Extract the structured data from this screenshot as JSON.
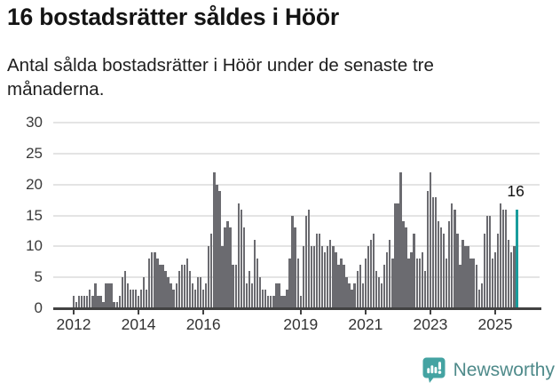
{
  "header": {
    "title": "16 bostadsrätter såldes i Höör",
    "subtitle": "Antal sålda bostadsrätter i Höör under de senaste tre månaderna."
  },
  "chart_data": {
    "type": "bar",
    "title": "16 bostadsrätter såldes i Höör",
    "subtitle": "Antal sålda bostadsrätter i Höör under de senaste tre månaderna.",
    "frequency": "monthly",
    "start_month": "2012-01",
    "end_month": "2025-09",
    "values": [
      2,
      1,
      2,
      2,
      2,
      2,
      3,
      2,
      4,
      2,
      2,
      1,
      4,
      4,
      4,
      1,
      1,
      2,
      5,
      6,
      4,
      3,
      3,
      3,
      2,
      3,
      5,
      3,
      8,
      9,
      9,
      8,
      7,
      7,
      6,
      5,
      4,
      3,
      4,
      6,
      7,
      7,
      8,
      6,
      4,
      3,
      5,
      5,
      3,
      4,
      10,
      12,
      22,
      20,
      19,
      10,
      13,
      14,
      13,
      7,
      7,
      17,
      16,
      13,
      4,
      6,
      4,
      11,
      8,
      5,
      3,
      3,
      2,
      2,
      2,
      4,
      4,
      2,
      2,
      3,
      8,
      15,
      13,
      8,
      2,
      10,
      15,
      16,
      10,
      10,
      12,
      12,
      10,
      9,
      10,
      11,
      10,
      9,
      7,
      8,
      7,
      5,
      4,
      3,
      4,
      6,
      7,
      4,
      8,
      10,
      11,
      12,
      6,
      5,
      4,
      7,
      9,
      11,
      8,
      17,
      17,
      22,
      14,
      13,
      8,
      9,
      12,
      8,
      8,
      9,
      6,
      19,
      22,
      18,
      18,
      14,
      13,
      12,
      8,
      14,
      17,
      16,
      12,
      7,
      11,
      10,
      10,
      8,
      8,
      7,
      3,
      4,
      12,
      15,
      15,
      8,
      9,
      12,
      17,
      16,
      16,
      11,
      9,
      10,
      16
    ],
    "highlight_last": true,
    "last_value_label": "16",
    "ylim": [
      0,
      30
    ],
    "yticks": [
      0,
      5,
      10,
      15,
      20,
      25,
      30
    ],
    "xtick_years": [
      "2012",
      "2014",
      "2016",
      "2019",
      "2021",
      "2023",
      "2025"
    ],
    "grid": true,
    "legend": "none",
    "bar_color": "#6b6b70",
    "highlight_color": "#199c9c"
  },
  "footer": {
    "brand": "Newsworthy",
    "logo_icon": "bar-chart-speech-bubble"
  }
}
